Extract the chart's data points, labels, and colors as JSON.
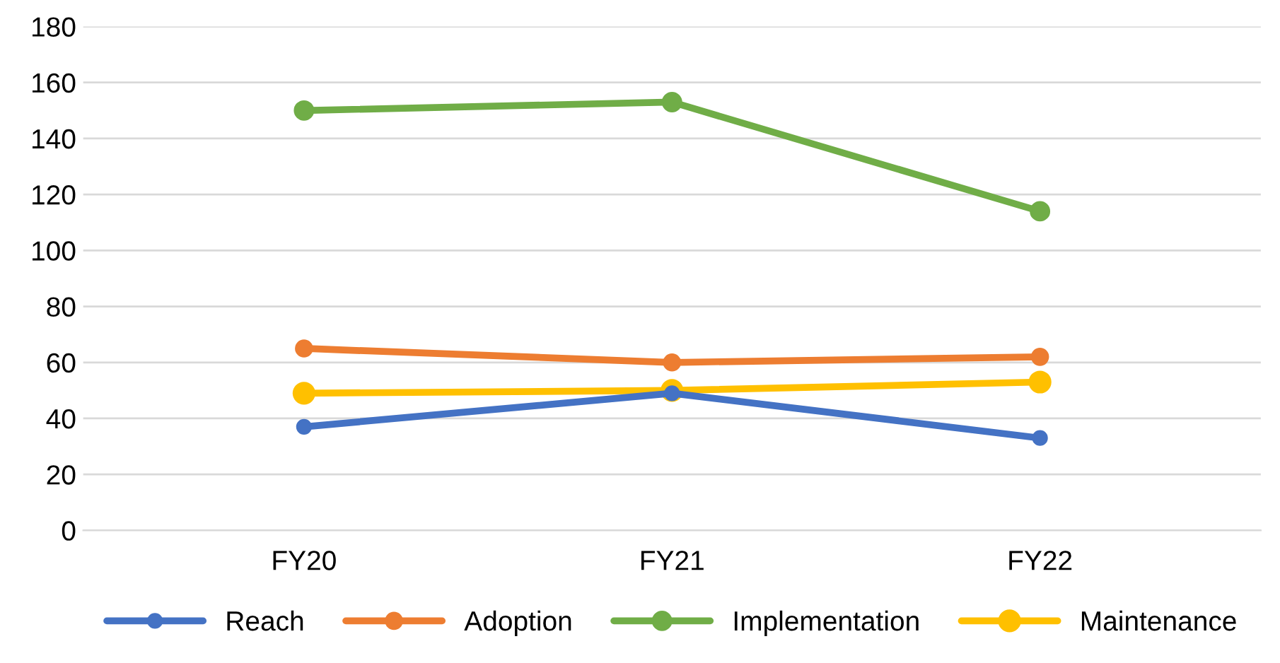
{
  "chart_data": {
    "type": "line",
    "categories": [
      "FY20",
      "FY21",
      "FY22"
    ],
    "series": [
      {
        "name": "Reach",
        "color": "#4472c4",
        "values": [
          37,
          49,
          33
        ]
      },
      {
        "name": "Adoption",
        "color": "#ed7d31",
        "values": [
          65,
          60,
          62
        ]
      },
      {
        "name": "Implementation",
        "color": "#70ad47",
        "values": [
          150,
          153,
          114
        ]
      },
      {
        "name": "Maintenance",
        "color": "#ffc000",
        "values": [
          49,
          50,
          53
        ]
      }
    ],
    "ylim": [
      0,
      180
    ],
    "yticks": [
      0,
      20,
      40,
      60,
      80,
      100,
      120,
      140,
      160,
      180
    ],
    "grid": "y",
    "legend": "bottom",
    "marker": "circle",
    "line_style": "solid"
  }
}
